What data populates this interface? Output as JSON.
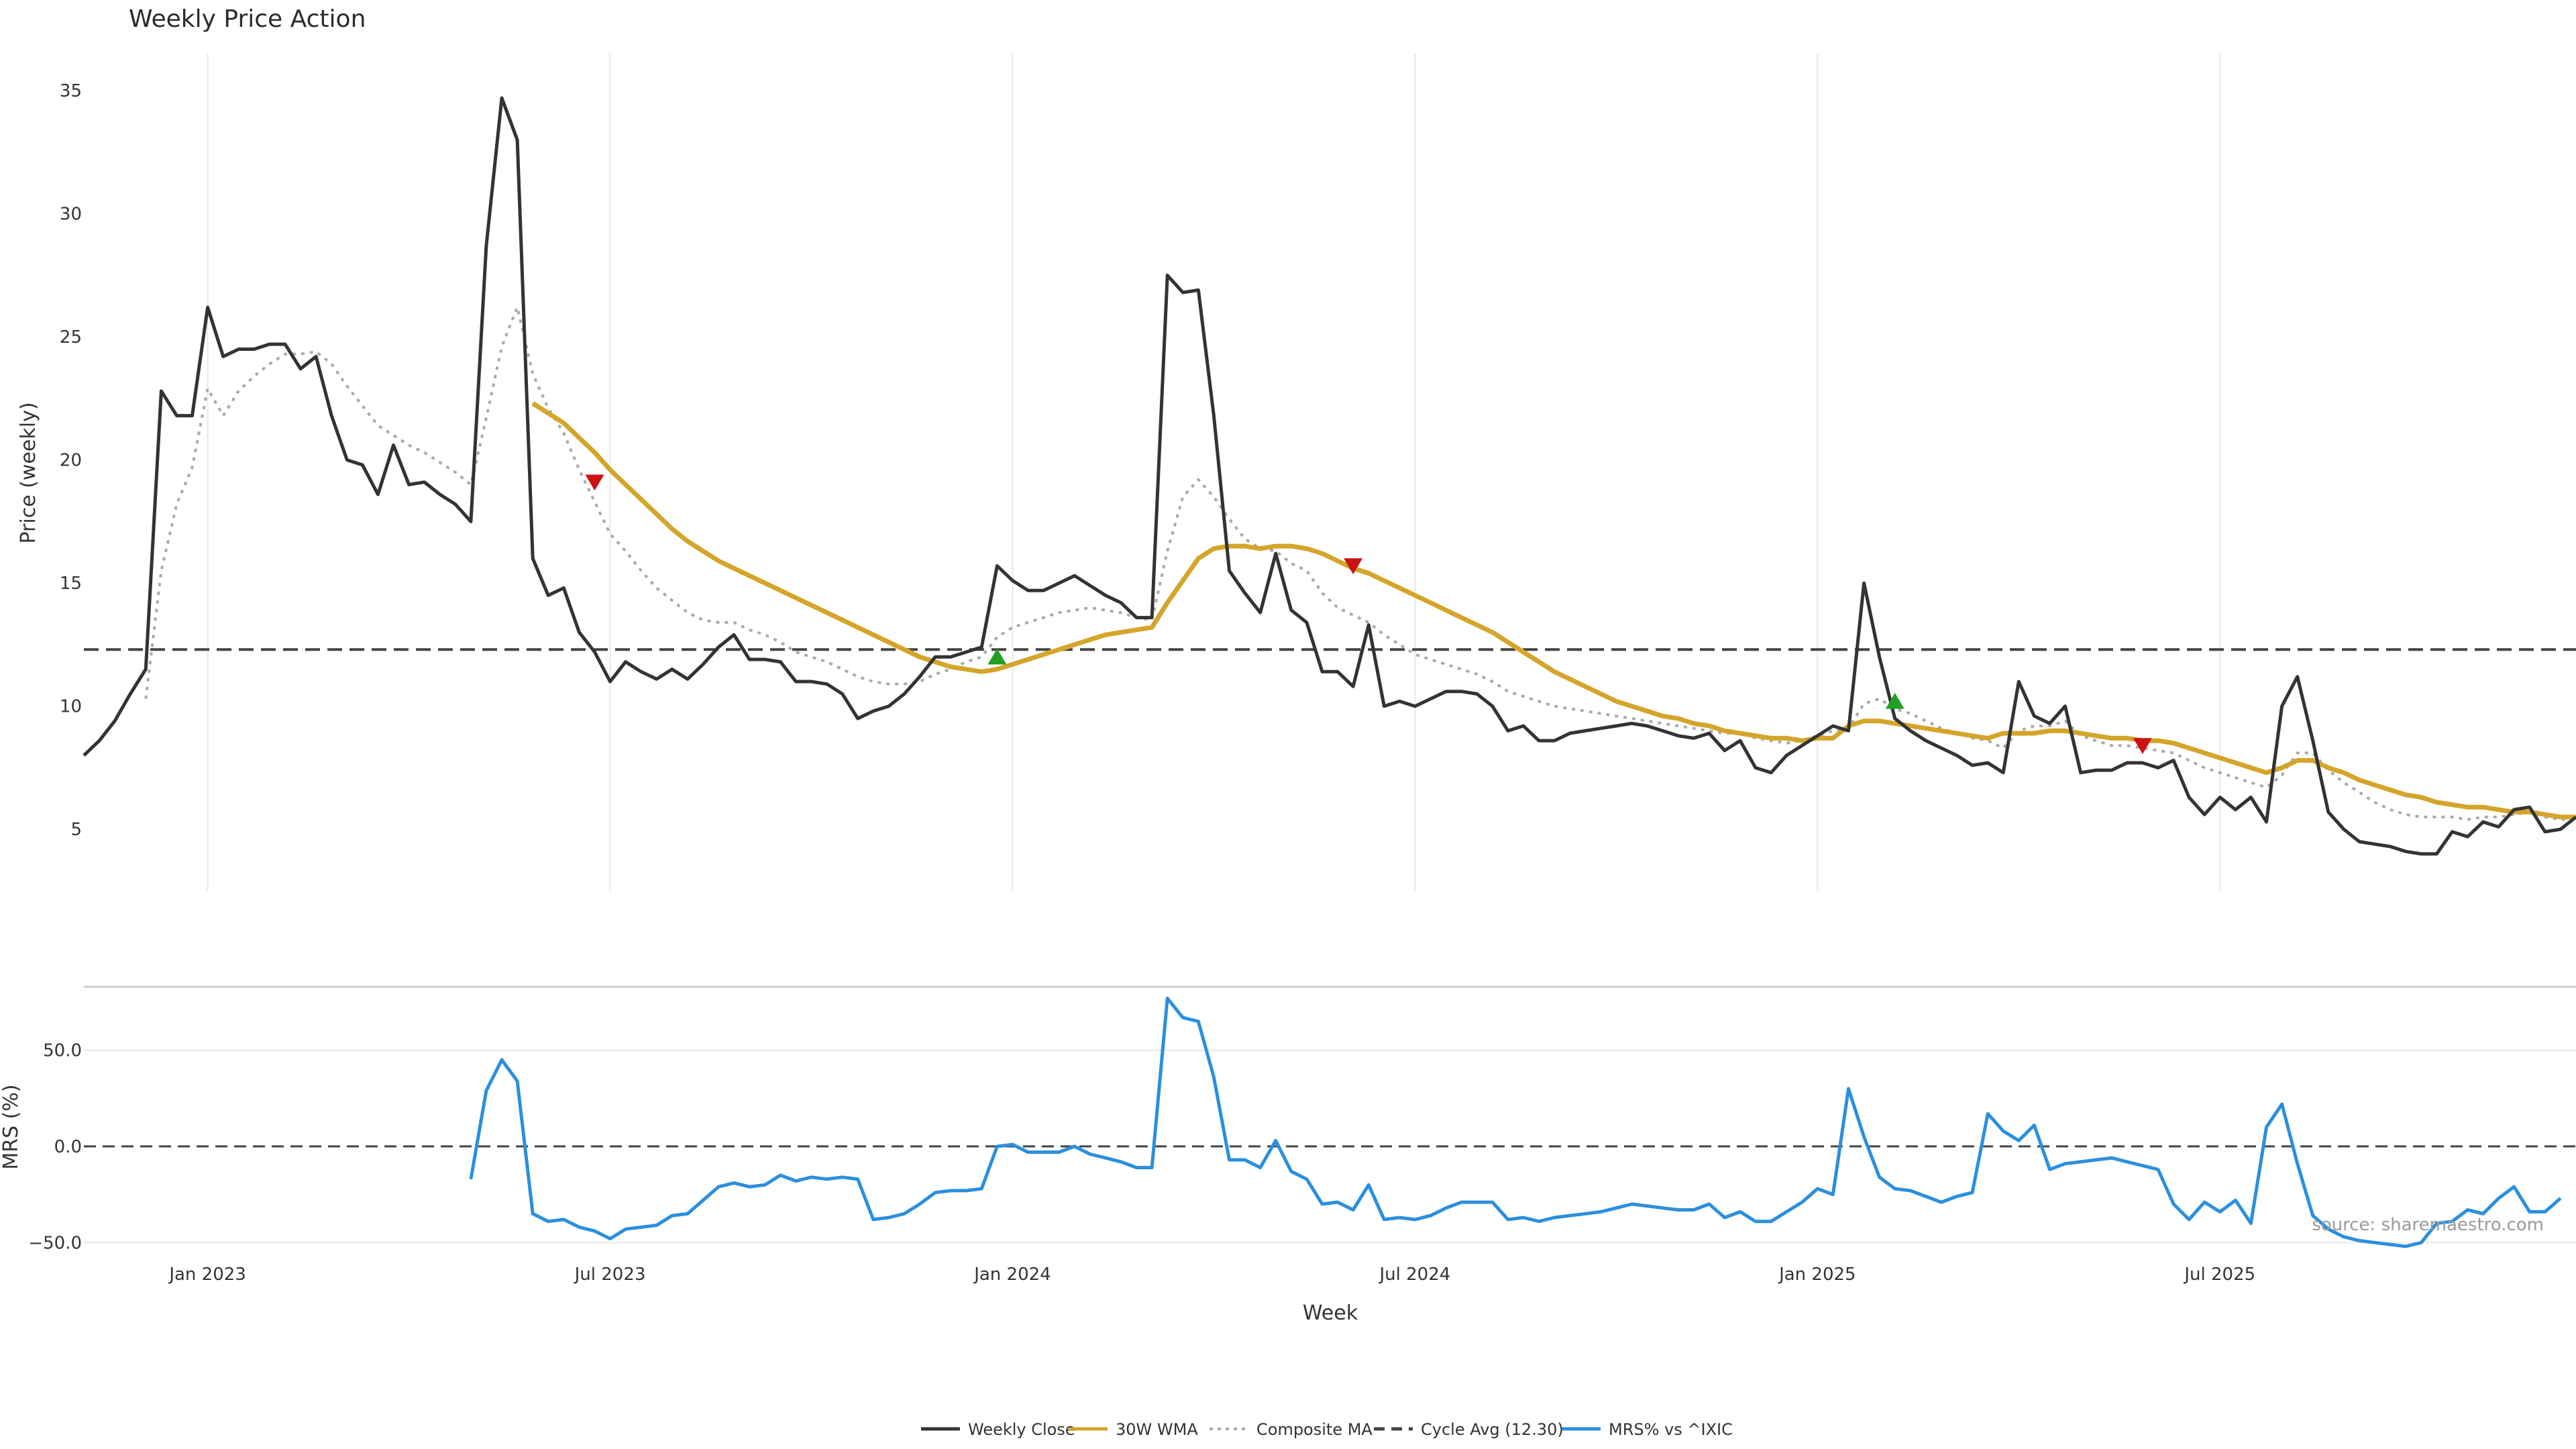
{
  "chart_data": [
    {
      "type": "line",
      "title": "Weekly Price Action",
      "ylabel": "Price (weekly)",
      "ylim": [
        2.5,
        36.5
      ],
      "yticks": [
        5,
        10,
        15,
        20,
        25,
        30,
        35
      ],
      "x_start": "2022-11-07",
      "x_interval_weeks": 1,
      "cycle_avg": 12.3,
      "series": [
        {
          "name": "Weekly Close",
          "color": "#333333",
          "values": [
            8.0,
            8.6,
            9.4,
            10.5,
            11.5,
            22.8,
            21.8,
            21.8,
            26.2,
            24.2,
            24.5,
            24.5,
            24.7,
            24.7,
            23.7,
            24.2,
            21.8,
            20.0,
            19.8,
            18.6,
            20.6,
            19.0,
            19.1,
            18.6,
            18.2,
            17.5,
            28.7,
            34.7,
            33.0,
            16.0,
            14.5,
            14.8,
            13.0,
            12.2,
            11.0,
            11.8,
            11.4,
            11.1,
            11.5,
            11.1,
            11.7,
            12.4,
            12.9,
            11.9,
            11.9,
            11.8,
            11.0,
            11.0,
            10.9,
            10.5,
            9.5,
            9.8,
            10.0,
            10.5,
            11.2,
            12.0,
            12.0,
            12.2,
            12.4,
            15.7,
            15.1,
            14.7,
            14.7,
            15.0,
            15.3,
            14.9,
            14.5,
            14.2,
            13.6,
            13.6,
            27.5,
            26.8,
            26.9,
            21.8,
            15.5,
            14.6,
            13.8,
            16.2,
            13.9,
            13.4,
            11.4,
            11.4,
            10.8,
            13.3,
            10.0,
            10.2,
            10.0,
            10.3,
            10.6,
            10.6,
            10.5,
            10.0,
            9.0,
            9.2,
            8.6,
            8.6,
            8.9,
            9.0,
            9.1,
            9.2,
            9.3,
            9.2,
            9.0,
            8.8,
            8.7,
            8.9,
            8.2,
            8.6,
            7.5,
            7.3,
            8.0,
            8.4,
            8.8,
            9.2,
            9.0,
            15.0,
            12.0,
            9.5,
            9.0,
            8.6,
            8.3,
            8.0,
            7.6,
            7.7,
            7.3,
            11.0,
            9.6,
            9.3,
            10.0,
            7.3,
            7.4,
            7.4,
            7.7,
            7.7,
            7.5,
            7.8,
            6.3,
            5.6,
            6.3,
            5.8,
            6.3,
            5.3,
            10.0,
            11.2,
            8.6,
            5.7,
            5.0,
            4.5,
            4.4,
            4.3,
            4.1,
            4.0,
            4.0,
            4.9,
            4.7,
            5.3,
            5.1,
            5.8,
            5.9,
            4.9,
            5.0,
            5.5
          ]
        },
        {
          "name": "30W WMA",
          "color": "#d4a52a",
          "values": [
            null,
            null,
            null,
            null,
            null,
            null,
            null,
            null,
            null,
            null,
            null,
            null,
            null,
            null,
            null,
            null,
            null,
            null,
            null,
            null,
            null,
            null,
            null,
            null,
            null,
            null,
            null,
            null,
            null,
            22.3,
            21.9,
            21.5,
            20.9,
            20.3,
            19.6,
            19.0,
            18.4,
            17.8,
            17.2,
            16.7,
            16.3,
            15.9,
            15.6,
            15.3,
            15.0,
            14.7,
            14.4,
            14.1,
            13.8,
            13.5,
            13.2,
            12.9,
            12.6,
            12.3,
            12.0,
            11.8,
            11.6,
            11.5,
            11.4,
            11.5,
            11.7,
            11.9,
            12.1,
            12.3,
            12.5,
            12.7,
            12.9,
            13.0,
            13.1,
            13.2,
            14.2,
            15.1,
            16.0,
            16.4,
            16.5,
            16.5,
            16.4,
            16.5,
            16.5,
            16.4,
            16.2,
            15.9,
            15.6,
            15.4,
            15.1,
            14.8,
            14.5,
            14.2,
            13.9,
            13.6,
            13.3,
            13.0,
            12.6,
            12.2,
            11.8,
            11.4,
            11.1,
            10.8,
            10.5,
            10.2,
            10.0,
            9.8,
            9.6,
            9.5,
            9.3,
            9.2,
            9.0,
            8.9,
            8.8,
            8.7,
            8.7,
            8.6,
            8.7,
            8.7,
            9.2,
            9.4,
            9.4,
            9.3,
            9.2,
            9.1,
            9.0,
            8.9,
            8.8,
            8.7,
            8.9,
            8.9,
            8.9,
            9.0,
            9.0,
            8.9,
            8.8,
            8.7,
            8.7,
            8.6,
            8.6,
            8.5,
            8.3,
            8.1,
            7.9,
            7.7,
            7.5,
            7.3,
            7.5,
            7.8,
            7.8,
            7.5,
            7.3,
            7.0,
            6.8,
            6.6,
            6.4,
            6.3,
            6.1,
            6.0,
            5.9,
            5.9,
            5.8,
            5.7,
            5.7,
            5.6,
            5.5,
            5.5
          ]
        },
        {
          "name": "Composite MA",
          "color": "#aaaaaa",
          "values": [
            null,
            null,
            null,
            null,
            10.3,
            15.5,
            18.2,
            19.7,
            22.9,
            21.8,
            22.8,
            23.4,
            23.9,
            24.3,
            24.3,
            24.4,
            23.9,
            23.0,
            22.2,
            21.4,
            21.0,
            20.6,
            20.3,
            19.9,
            19.5,
            19.0,
            21.7,
            24.6,
            26.2,
            23.5,
            22.1,
            21.1,
            19.6,
            18.3,
            17.0,
            16.3,
            15.5,
            14.8,
            14.3,
            13.8,
            13.5,
            13.4,
            13.4,
            13.1,
            12.9,
            12.6,
            12.2,
            12.0,
            11.8,
            11.5,
            11.2,
            11.0,
            10.9,
            10.9,
            11.0,
            11.3,
            11.5,
            11.8,
            12.0,
            12.8,
            13.2,
            13.4,
            13.6,
            13.8,
            13.9,
            14.0,
            13.9,
            13.8,
            13.6,
            13.5,
            16.3,
            18.5,
            19.2,
            18.5,
            17.6,
            16.8,
            16.4,
            16.3,
            15.8,
            15.5,
            14.6,
            14.0,
            13.7,
            13.4,
            12.9,
            12.5,
            12.1,
            11.9,
            11.7,
            11.5,
            11.3,
            11.0,
            10.6,
            10.4,
            10.2,
            10.0,
            9.9,
            9.8,
            9.7,
            9.6,
            9.5,
            9.4,
            9.3,
            9.2,
            9.1,
            9.0,
            8.9,
            8.9,
            8.7,
            8.6,
            8.5,
            8.6,
            8.8,
            9.0,
            9.1,
            10.1,
            10.3,
            9.9,
            9.7,
            9.4,
            9.1,
            8.9,
            8.7,
            8.6,
            8.3,
            9.0,
            9.2,
            9.2,
            9.4,
            8.8,
            8.6,
            8.4,
            8.4,
            8.3,
            8.2,
            8.1,
            7.8,
            7.5,
            7.3,
            7.1,
            6.9,
            6.7,
            7.2,
            8.1,
            8.1,
            7.4,
            6.9,
            6.5,
            6.1,
            5.8,
            5.6,
            5.5,
            5.5,
            5.5,
            5.4,
            5.5,
            5.5,
            5.6,
            5.7,
            5.5,
            5.4,
            5.4
          ]
        }
      ],
      "signals": [
        {
          "type": "sell",
          "week": 33,
          "value": 19.1,
          "color": "#cc1111"
        },
        {
          "type": "buy",
          "week": 59,
          "value": 12.0,
          "color": "#22a022"
        },
        {
          "type": "sell",
          "week": 82,
          "value": 15.7,
          "color": "#cc1111"
        },
        {
          "type": "buy",
          "week": 117,
          "value": 10.2,
          "color": "#22a022"
        },
        {
          "type": "sell",
          "week": 133,
          "value": 8.4,
          "color": "#cc1111"
        }
      ]
    },
    {
      "type": "line",
      "ylabel": "MRS (%)",
      "xlabel": "Week",
      "ylim": [
        -52,
        83
      ],
      "yticks": [
        50.0,
        0.0,
        -50.0
      ],
      "ytick_labels": [
        "50.0",
        "0.0",
        "−50.0"
      ],
      "zero_line": 0,
      "series": [
        {
          "name": "MRS% vs ^IXIC",
          "color": "#2b8fde",
          "values": [
            null,
            null,
            null,
            null,
            null,
            null,
            null,
            null,
            null,
            null,
            null,
            null,
            null,
            null,
            null,
            null,
            null,
            null,
            null,
            null,
            null,
            null,
            null,
            null,
            null,
            -17,
            29,
            45,
            34,
            -35,
            -39,
            -38,
            -42,
            -44,
            -48,
            -43,
            -42,
            -41,
            -36,
            -35,
            -28,
            -21,
            -19,
            -21,
            -20,
            -15,
            -18,
            -16,
            -17,
            -16,
            -17,
            -38,
            -37,
            -35,
            -30,
            -24,
            -23,
            -23,
            -22,
            0,
            1,
            -3,
            -3,
            -3,
            0,
            -4,
            -6,
            -8,
            -11,
            -11,
            77,
            67,
            65,
            36,
            -7,
            -7,
            -11,
            3,
            -13,
            -17,
            -30,
            -29,
            -33,
            -20,
            -38,
            -37,
            -38,
            -36,
            -32,
            -29,
            -29,
            -29,
            -38,
            -37,
            -39,
            -37,
            -36,
            -35,
            -34,
            -32,
            -30,
            -31,
            -32,
            -33,
            -33,
            -30,
            -37,
            -34,
            -39,
            -39,
            -34,
            -29,
            -22,
            -25,
            30,
            5,
            -16,
            -22,
            -23,
            -26,
            -29,
            -26,
            -24,
            17,
            8,
            3,
            11,
            -12,
            -9,
            -8,
            -7,
            -6,
            -8,
            -10,
            -12,
            -30,
            -38,
            -29,
            -34,
            -28,
            -40,
            10,
            22,
            -9,
            -36,
            -43,
            -47,
            -49,
            -50,
            -51,
            -52,
            -50,
            -40,
            -39,
            -33,
            -35,
            -27,
            -21,
            -34,
            -34,
            -27
          ]
        }
      ]
    }
  ],
  "x_axis": {
    "tick_weeks": [
      8,
      34,
      60,
      86,
      112,
      138
    ],
    "tick_labels": [
      "Jan 2023",
      "Jul 2023",
      "Jan 2024",
      "Jul 2024",
      "Jan 2025",
      "Jul 2025"
    ]
  },
  "legend": {
    "placement": "bottom-center",
    "items": [
      {
        "label": "Weekly Close",
        "style": "solid",
        "color": "#333333"
      },
      {
        "label": "30W WMA",
        "style": "solid",
        "color": "#d4a52a"
      },
      {
        "label": "Composite MA",
        "style": "dotted",
        "color": "#aaaaaa"
      },
      {
        "label": "Cycle Avg (12.30)",
        "style": "dashed",
        "color": "#444444"
      },
      {
        "label": "MRS% vs ^IXIC",
        "style": "solid",
        "color": "#2b8fde"
      }
    ]
  },
  "source_note": "source: sharemaestro.com"
}
